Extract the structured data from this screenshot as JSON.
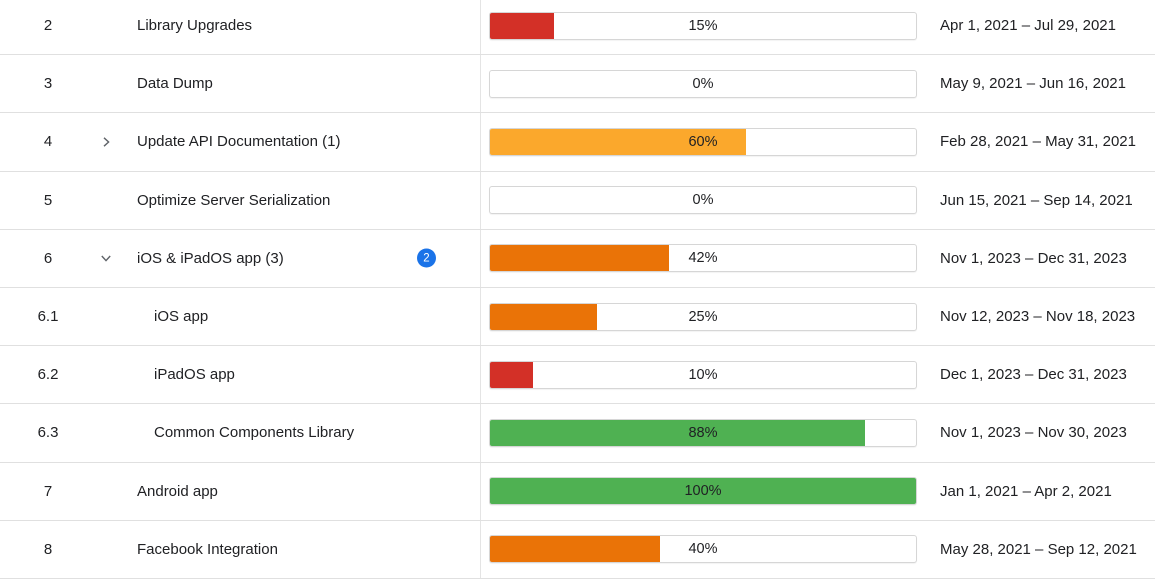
{
  "table": {
    "colors": {
      "red": "#d33027",
      "amber": "#fba82c",
      "orange": "#ea7307",
      "green": "#4fb152",
      "badge_blue": "#1a73e8"
    },
    "rows": [
      {
        "num": "2",
        "chevron": null,
        "child": false,
        "name": "Library Upgrades",
        "badge": null,
        "percent": 15,
        "percent_label": "15%",
        "color": "red",
        "dates": "Apr 1, 2021 – Jul 29, 2021"
      },
      {
        "num": "3",
        "chevron": null,
        "child": false,
        "name": "Data Dump",
        "badge": null,
        "percent": 0,
        "percent_label": "0%",
        "color": null,
        "dates": "May 9, 2021 – Jun 16, 2021"
      },
      {
        "num": "4",
        "chevron": "right",
        "child": false,
        "name": "Update API Documentation (1)",
        "badge": null,
        "percent": 60,
        "percent_label": "60%",
        "color": "amber",
        "dates": "Feb 28, 2021 – May 31, 2021"
      },
      {
        "num": "5",
        "chevron": null,
        "child": false,
        "name": "Optimize Server Serialization",
        "badge": null,
        "percent": 0,
        "percent_label": "0%",
        "color": null,
        "dates": "Jun 15, 2021 – Sep 14, 2021"
      },
      {
        "num": "6",
        "chevron": "down",
        "child": false,
        "name": "iOS & iPadOS app (3)",
        "badge": "2",
        "percent": 42,
        "percent_label": "42%",
        "color": "orange",
        "dates": "Nov 1, 2023 – Dec 31, 2023"
      },
      {
        "num": "6.1",
        "chevron": null,
        "child": true,
        "name": "iOS app",
        "badge": null,
        "percent": 25,
        "percent_label": "25%",
        "color": "orange",
        "dates": "Nov 12, 2023 – Nov 18, 2023"
      },
      {
        "num": "6.2",
        "chevron": null,
        "child": true,
        "name": "iPadOS app",
        "badge": null,
        "percent": 10,
        "percent_label": "10%",
        "color": "red",
        "dates": "Dec 1, 2023 – Dec 31, 2023"
      },
      {
        "num": "6.3",
        "chevron": null,
        "child": true,
        "name": "Common Components Library",
        "badge": null,
        "percent": 88,
        "percent_label": "88%",
        "color": "green",
        "dates": "Nov 1, 2023 – Nov 30, 2023"
      },
      {
        "num": "7",
        "chevron": null,
        "child": false,
        "name": "Android app",
        "badge": null,
        "percent": 100,
        "percent_label": "100%",
        "color": "green",
        "dates": "Jan 1, 2021 – Apr 2, 2021"
      },
      {
        "num": "8",
        "chevron": null,
        "child": false,
        "name": "Facebook Integration",
        "badge": null,
        "percent": 40,
        "percent_label": "40%",
        "color": "orange",
        "dates": "May 28, 2021 – Sep 12, 2021"
      }
    ]
  }
}
